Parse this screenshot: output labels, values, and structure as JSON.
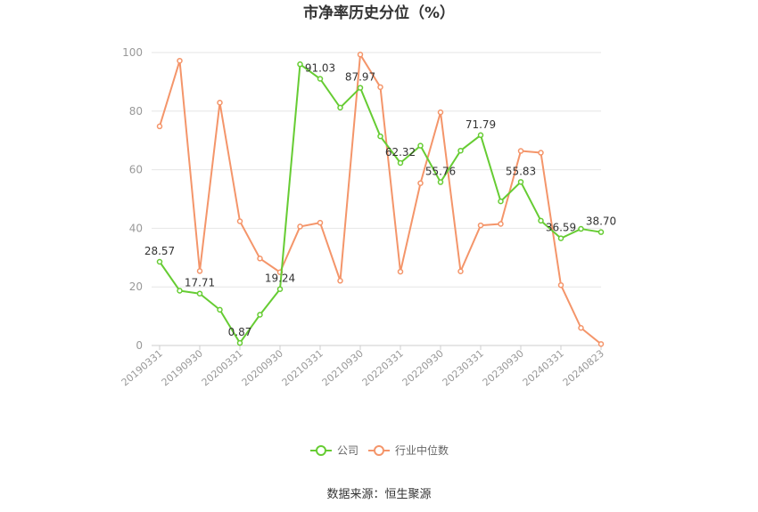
{
  "chart_data": {
    "type": "line",
    "title": "市净率历史分位（%）",
    "source": "数据来源：恒生聚源",
    "ylim": [
      0,
      100
    ],
    "yticks": [
      0,
      20,
      40,
      60,
      80,
      100
    ],
    "x": [
      "20190331",
      "20190630",
      "20190930",
      "20191231",
      "20200331",
      "20200630",
      "20200930",
      "20201231",
      "20210331",
      "20210630",
      "20210930",
      "20211231",
      "20220331",
      "20220630",
      "20220930",
      "20221231",
      "20230331",
      "20230630",
      "20230930",
      "20231231",
      "20240331",
      "20240630",
      "20240823"
    ],
    "xtick_labels": [
      "20190331",
      "20190930",
      "20200331",
      "20200930",
      "20210331",
      "20210930",
      "20220331",
      "20220930",
      "20230331",
      "20230930",
      "20240331",
      "20240823"
    ],
    "series": [
      {
        "name": "公司",
        "color": "#66cc33",
        "values": [
          28.57,
          18.7,
          17.71,
          12.2,
          0.87,
          10.5,
          19.24,
          96.0,
          91.03,
          81.2,
          87.97,
          71.4,
          62.32,
          68.2,
          55.76,
          66.5,
          71.79,
          49.2,
          55.83,
          42.6,
          36.59,
          39.8,
          38.7
        ],
        "labels": [
          "28.57",
          null,
          "17.71",
          null,
          "0.87",
          null,
          "19.24",
          null,
          "91.03",
          null,
          "87.97",
          null,
          "62.32",
          null,
          "55.76",
          null,
          "71.79",
          null,
          "55.83",
          null,
          "36.59",
          null,
          "38.70"
        ]
      },
      {
        "name": "行业中位数",
        "color": "#f4956a",
        "values": [
          74.8,
          97.2,
          25.4,
          82.9,
          42.4,
          29.7,
          25.0,
          40.6,
          41.9,
          22.1,
          99.3,
          88.2,
          25.2,
          55.4,
          79.6,
          25.3,
          41.0,
          41.5,
          66.4,
          65.8,
          20.6,
          6.0,
          0.5
        ],
        "labels": []
      }
    ],
    "grid": true,
    "legend": "bottom"
  }
}
